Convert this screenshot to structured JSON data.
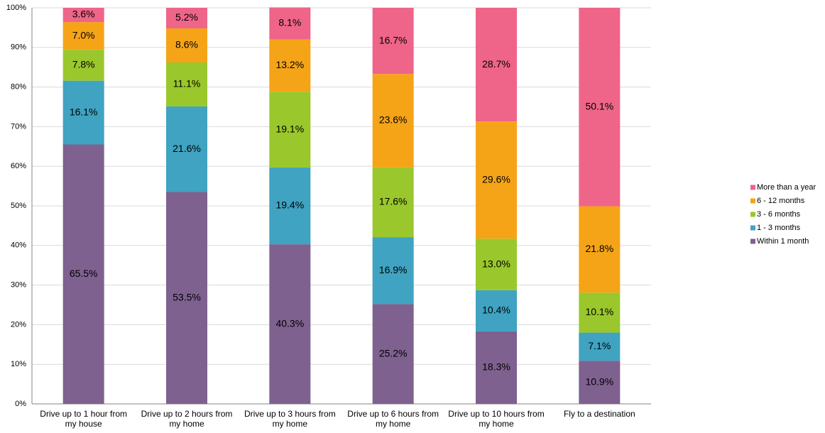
{
  "chart_data": {
    "type": "stacked_bar",
    "categories": [
      "Drive up to 1 hour from my house",
      "Drive up to 2 hours from my home",
      "Drive up to 3 hours from my home",
      "Drive up to 6 hours from my home",
      "Drive up to 10 hours from my home",
      "Fly to a destination"
    ],
    "series": [
      {
        "name": "Within 1 month",
        "color": "#7f6190",
        "values": [
          65.5,
          53.5,
          40.3,
          25.2,
          18.3,
          10.9
        ],
        "value_labels": [
          "65.5%",
          "53.5%",
          "40.3%",
          "25.2%",
          "18.3%",
          "10.9%"
        ]
      },
      {
        "name": "1 - 3 months",
        "color": "#3fa3c1",
        "values": [
          16.1,
          21.6,
          19.4,
          16.9,
          10.4,
          7.1
        ],
        "value_labels": [
          "16.1%",
          "21.6%",
          "19.4%",
          "16.9%",
          "10.4%",
          "7.1%"
        ]
      },
      {
        "name": "3 - 6 months",
        "color": "#9ac72c",
        "values": [
          7.8,
          11.1,
          19.1,
          17.6,
          13.0,
          10.1
        ],
        "value_labels": [
          "7.8%",
          "11.1%",
          "19.1%",
          "17.6%",
          "13.0%",
          "10.1%"
        ]
      },
      {
        "name": "6 - 12 months",
        "color": "#f5a418",
        "values": [
          7.0,
          8.6,
          13.2,
          23.6,
          29.6,
          21.8
        ],
        "value_labels": [
          "7.0%",
          "8.6%",
          "13.2%",
          "23.6%",
          "29.6%",
          "21.8%"
        ]
      },
      {
        "name": "More than a year",
        "color": "#ee6589",
        "values": [
          3.6,
          5.2,
          8.1,
          16.7,
          28.7,
          50.1
        ],
        "value_labels": [
          "3.6%",
          "5.2%",
          "8.1%",
          "16.7%",
          "28.7%",
          "50.1%"
        ]
      }
    ],
    "ylim": [
      0,
      100
    ],
    "yticks": [
      {
        "value": 0,
        "label": "0%"
      },
      {
        "value": 10,
        "label": "10%"
      },
      {
        "value": 20,
        "label": "20%"
      },
      {
        "value": 30,
        "label": "30%"
      },
      {
        "value": 40,
        "label": "40%"
      },
      {
        "value": 50,
        "label": "50%"
      },
      {
        "value": 60,
        "label": "60%"
      },
      {
        "value": 70,
        "label": "70%"
      },
      {
        "value": 80,
        "label": "80%"
      },
      {
        "value": 90,
        "label": "90%"
      },
      {
        "value": 100,
        "label": "100%"
      }
    ],
    "grid": true,
    "legend": "right"
  }
}
